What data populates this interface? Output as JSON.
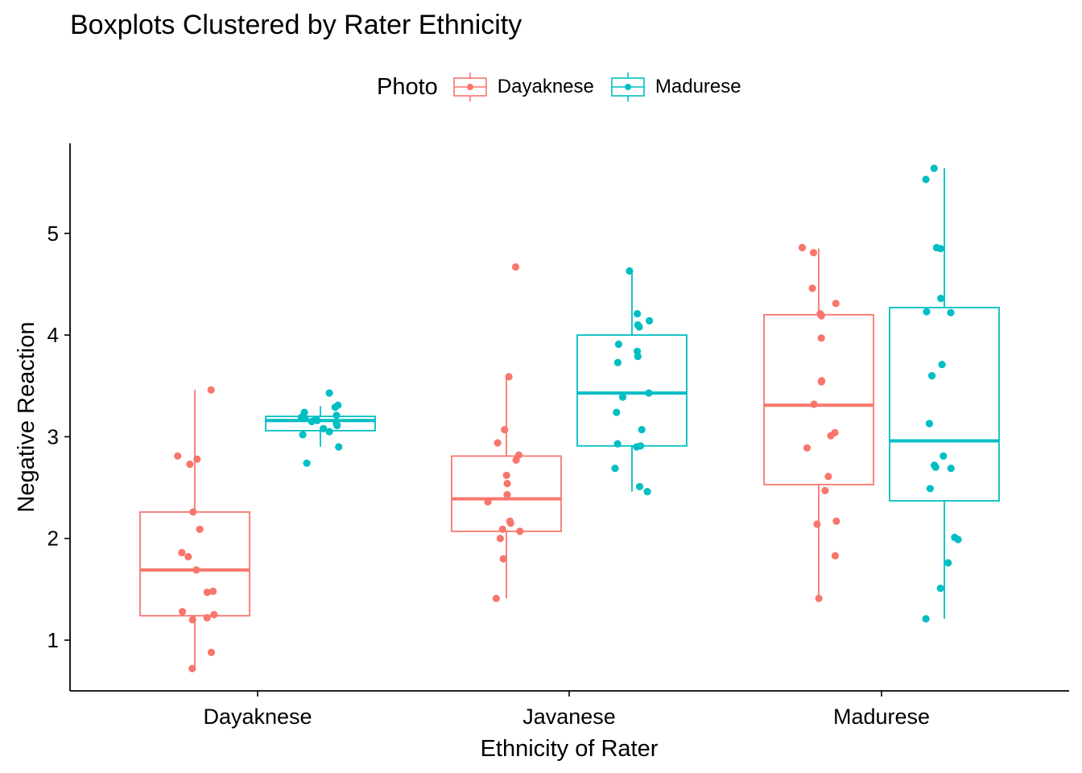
{
  "chart_data": {
    "type": "boxplot",
    "title": "Boxplots Clustered by Rater Ethnicity",
    "xlabel": "Ethnicity of Rater",
    "ylabel": "Negative Reaction",
    "ylim": [
      0.5,
      5.9
    ],
    "yticks": [
      1,
      2,
      3,
      4,
      5
    ],
    "categories": [
      "Dayaknese",
      "Javanese",
      "Madurese"
    ],
    "legend": {
      "title": "Photo",
      "position": "top"
    },
    "grid": false,
    "series": [
      {
        "name": "Dayaknese",
        "color": "#F8766D",
        "boxes": [
          {
            "category": "Dayaknese",
            "min": 0.72,
            "q1": 1.24,
            "median": 1.69,
            "q3": 2.26,
            "max": 3.46,
            "points": [
              3.46,
              2.81,
              2.78,
              2.73,
              2.26,
              2.09,
              1.86,
              1.82,
              1.69,
              1.48,
              1.47,
              1.28,
              1.25,
              1.22,
              1.2,
              0.88,
              0.72
            ]
          },
          {
            "category": "Javanese",
            "min": 1.41,
            "q1": 2.07,
            "median": 2.39,
            "q3": 2.81,
            "max": 3.59,
            "points": [
              4.67,
              3.59,
              3.07,
              2.94,
              2.82,
              2.77,
              2.62,
              2.54,
              2.43,
              2.36,
              2.17,
              2.15,
              2.09,
              2.07,
              2.0,
              1.8,
              1.41
            ]
          },
          {
            "category": "Madurese",
            "min": 1.41,
            "q1": 2.53,
            "median": 3.31,
            "q3": 4.2,
            "max": 4.85,
            "points": [
              4.86,
              4.81,
              4.46,
              4.31,
              4.21,
              4.19,
              3.97,
              3.55,
              3.54,
              3.32,
              3.04,
              3.01,
              2.89,
              2.61,
              2.47,
              2.17,
              2.14,
              1.83,
              1.41
            ]
          }
        ]
      },
      {
        "name": "Madurese",
        "color": "#00BFC4",
        "boxes": [
          {
            "category": "Dayaknese",
            "min": 2.9,
            "q1": 3.06,
            "median": 3.16,
            "q3": 3.2,
            "max": 3.3,
            "points": [
              3.43,
              3.31,
              3.29,
              3.24,
              3.21,
              3.19,
              3.18,
              3.17,
              3.16,
              3.15,
              3.13,
              3.11,
              3.08,
              3.05,
              3.02,
              2.9,
              2.74
            ]
          },
          {
            "category": "Javanese",
            "min": 2.46,
            "q1": 2.91,
            "median": 3.43,
            "q3": 4.0,
            "max": 4.62,
            "points": [
              4.63,
              4.21,
              4.14,
              4.1,
              4.08,
              3.91,
              3.84,
              3.79,
              3.73,
              3.43,
              3.39,
              3.24,
              3.07,
              2.93,
              2.91,
              2.9,
              2.69,
              2.51,
              2.46
            ]
          },
          {
            "category": "Madurese",
            "min": 1.21,
            "q1": 2.37,
            "median": 2.96,
            "q3": 4.27,
            "max": 5.64,
            "points": [
              5.64,
              5.53,
              4.86,
              4.85,
              4.36,
              4.23,
              4.22,
              3.71,
              3.6,
              3.13,
              2.81,
              2.72,
              2.7,
              2.69,
              2.49,
              2.01,
              1.99,
              1.76,
              1.51,
              1.21
            ]
          }
        ]
      }
    ]
  }
}
